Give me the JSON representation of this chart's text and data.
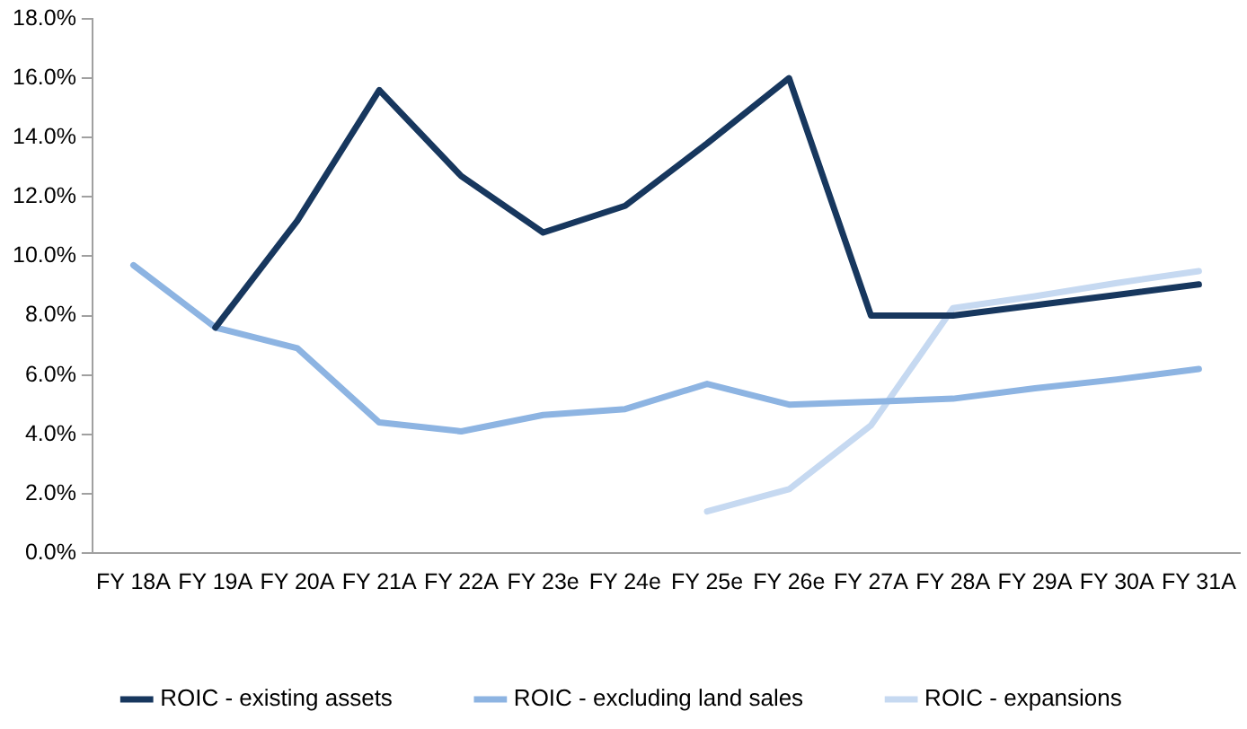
{
  "chart_data": {
    "type": "line",
    "categories": [
      "FY 18A",
      "FY 19A",
      "FY 20A",
      "FY 21A",
      "FY 22A",
      "FY 23e",
      "FY 24e",
      "FY 25e",
      "FY 26e",
      "FY 27A",
      "FY 28A",
      "FY 29A",
      "FY 30A",
      "FY 31A"
    ],
    "series": [
      {
        "name": "ROIC - existing assets",
        "color": "#17375e",
        "values": [
          null,
          7.6,
          11.2,
          15.6,
          12.7,
          10.8,
          11.7,
          13.8,
          16.0,
          8.0,
          8.0,
          8.35,
          8.7,
          9.05
        ]
      },
      {
        "name": "ROIC - excluding land sales",
        "color": "#8db4e2",
        "values": [
          9.7,
          7.6,
          6.9,
          4.4,
          4.1,
          4.65,
          4.85,
          5.7,
          5.0,
          5.1,
          5.2,
          5.55,
          5.85,
          6.2
        ]
      },
      {
        "name": "ROIC - expansions",
        "color": "#c6d9f1",
        "values": [
          null,
          null,
          null,
          null,
          null,
          null,
          null,
          1.4,
          2.15,
          4.3,
          8.25,
          8.65,
          9.1,
          9.5
        ]
      }
    ],
    "ylim": [
      0,
      18
    ],
    "yticks": [
      {
        "value": 0,
        "label": "0.0%"
      },
      {
        "value": 2,
        "label": "2.0%"
      },
      {
        "value": 4,
        "label": "4.0%"
      },
      {
        "value": 6,
        "label": "6.0%"
      },
      {
        "value": 8,
        "label": "8.0%"
      },
      {
        "value": 10,
        "label": "10.0%"
      },
      {
        "value": 12,
        "label": "12.0%"
      },
      {
        "value": 14,
        "label": "14.0%"
      },
      {
        "value": 16,
        "label": "16.0%"
      },
      {
        "value": 18,
        "label": "18.0%"
      }
    ],
    "grid": false,
    "legend": "bottom",
    "marker": "none",
    "line_style": "solid"
  }
}
